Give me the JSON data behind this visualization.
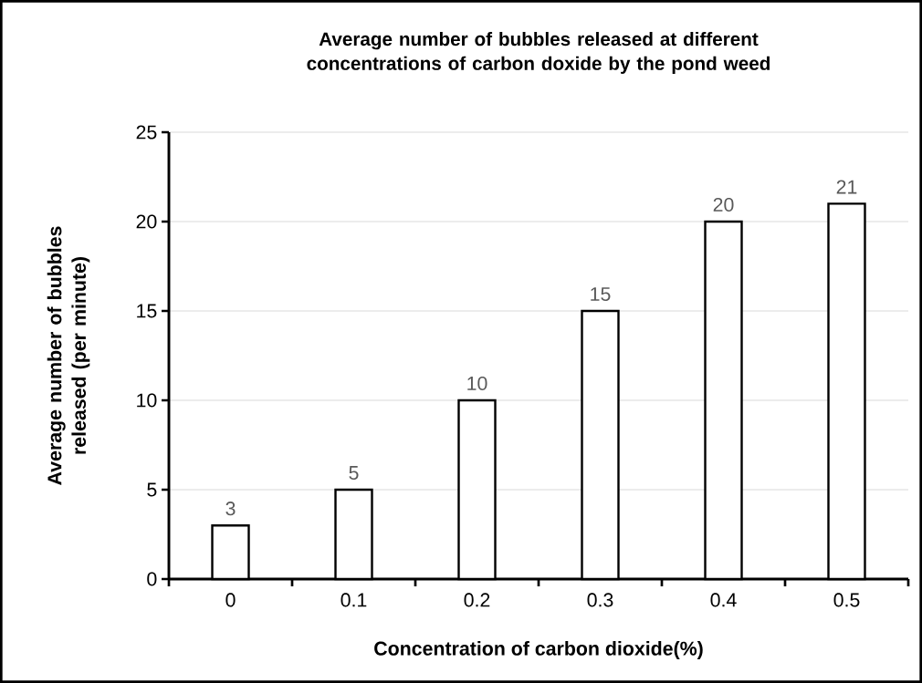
{
  "chart_data": {
    "type": "bar",
    "title": "Average number of bubbles released at different concentrations of carbon doxide by the pond weed",
    "xlabel": "Concentration of carbon dioxide(%)",
    "ylabel": "Average number of bubbles released (per minute)",
    "categories": [
      "0",
      "0.1",
      "0.2",
      "0.3",
      "0.4",
      "0.5"
    ],
    "values": [
      3,
      5,
      10,
      15,
      20,
      21
    ],
    "color": "#ffffff",
    "ylim": [
      0,
      25
    ],
    "yticks": [
      0,
      5,
      10,
      15,
      20,
      25
    ],
    "grid": "y",
    "data_labels": true
  }
}
